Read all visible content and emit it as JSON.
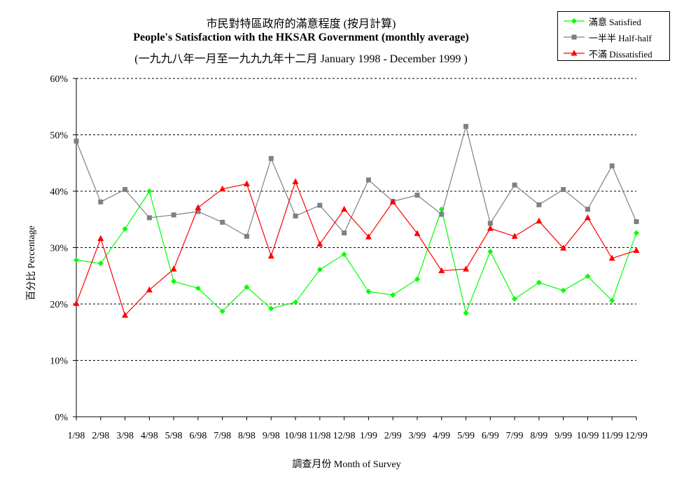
{
  "chart_data": {
    "type": "line",
    "title": "市民對特區政府的滿意程度 (按月計算)",
    "subtitle": "People's Satisfaction with the HKSAR Government (monthly average)",
    "period": "(一九九八年一月至一九九九年十二月 January 1998 - December 1999 )",
    "xlabel": "調查月份 Month of Survey",
    "ylabel": "百分比 Percentage",
    "ylim": [
      0,
      60
    ],
    "yticks": [
      "0%",
      "10%",
      "20%",
      "30%",
      "40%",
      "50%",
      "60%"
    ],
    "ytick_values": [
      0,
      10,
      20,
      30,
      40,
      50,
      60
    ],
    "grid": "horizontal dashed",
    "legend_position": "top-right",
    "categories": [
      "1/98",
      "2/98",
      "3/98",
      "4/98",
      "5/98",
      "6/98",
      "7/98",
      "8/98",
      "9/98",
      "10/98",
      "11/98",
      "12/98",
      "1/99",
      "2/99",
      "3/99",
      "4/99",
      "5/99",
      "6/99",
      "7/99",
      "8/99",
      "9/99",
      "10/99",
      "11/99",
      "12/99"
    ],
    "series": [
      {
        "name": "滿意 Satisfied",
        "color": "#00ff00",
        "marker": "diamond",
        "values": [
          27.8,
          27.2,
          33.3,
          40.0,
          24.0,
          22.8,
          18.7,
          23.0,
          19.2,
          20.3,
          26.1,
          28.8,
          22.2,
          21.6,
          24.4,
          36.8,
          18.4,
          29.3,
          20.9,
          23.8,
          22.4,
          24.9,
          20.6,
          32.6
        ]
      },
      {
        "name": "一半半 Half-half",
        "color": "#808080",
        "marker": "square",
        "values": [
          48.9,
          38.1,
          40.3,
          35.3,
          35.8,
          36.4,
          34.5,
          32.0,
          45.8,
          35.6,
          37.5,
          32.6,
          42.0,
          38.2,
          39.3,
          35.9,
          51.5,
          34.3,
          41.1,
          37.6,
          40.3,
          36.8,
          44.5,
          34.6
        ]
      },
      {
        "name": "不滿 Dissatisfied",
        "color": "#ff0000",
        "marker": "triangle",
        "values": [
          20.1,
          31.6,
          18.0,
          22.5,
          26.2,
          37.1,
          40.4,
          41.3,
          28.5,
          41.7,
          30.6,
          36.8,
          31.9,
          38.1,
          32.5,
          25.9,
          26.2,
          33.4,
          32.0,
          34.7,
          29.9,
          35.3,
          28.1,
          29.5
        ]
      }
    ]
  }
}
